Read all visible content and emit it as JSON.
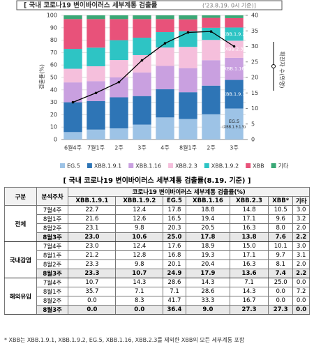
{
  "chart_data": {
    "type": "bar",
    "stacked": true,
    "title": "[ 국내 코로나19 변이바이러스 세부계통 검출률",
    "subtitle": "('23.8.19. 0시 기준)]",
    "ylabel": "검출률(%)",
    "categories": [
      "6월4주",
      "7월1주",
      "2주",
      "3주",
      "4주",
      "8월1주",
      "2주",
      "3주"
    ],
    "series": [
      {
        "name": "EG.5",
        "color": "#9dc3e6",
        "values": [
          6,
          8,
          9,
          12,
          17.8,
          16.5,
          20.3,
          25.0
        ]
      },
      {
        "name": "XBB.1.9.1",
        "color": "#2e75b6",
        "values": [
          24,
          23,
          25,
          23,
          22.7,
          21.6,
          23.1,
          23.0
        ]
      },
      {
        "name": "XBB.1.16",
        "color": "#c9a0e0",
        "values": [
          16,
          16,
          16,
          19,
          18.8,
          19.4,
          20.5,
          17.8
        ]
      },
      {
        "name": "XBB.2.3",
        "color": "#f5bfdc",
        "values": [
          11,
          12,
          14,
          14,
          14.8,
          17.1,
          16.3,
          13.8
        ]
      },
      {
        "name": "XBB.1.9.2",
        "color": "#2ec4c4",
        "values": [
          16,
          15,
          16,
          14,
          12.4,
          12.6,
          9.8,
          10.6
        ]
      },
      {
        "name": "XBB",
        "color": "#e8527a",
        "values": [
          24,
          23,
          17,
          15,
          10.5,
          9.6,
          8.0,
          7.6
        ]
      },
      {
        "name": "기타",
        "color": "#3aa876",
        "values": [
          3,
          3,
          3,
          3,
          3.0,
          3.2,
          2.0,
          2.2
        ]
      },
      {
        "name": "확진자 수(만명)",
        "type": "line",
        "axis": "y2",
        "color": "#000000",
        "values": [
          12,
          15,
          18.5,
          25.5,
          31,
          34.5,
          34.8,
          30
        ]
      }
    ],
    "annotations": [
      "EG.5",
      "(XBB.1.9.1.5)",
      "XBB.1.9.1",
      "XBB.1.16",
      "XBB.2.3",
      "XBB.1.9.2"
    ],
    "ylim": [
      0,
      100
    ],
    "yticks": [
      0,
      10,
      20,
      30,
      40,
      50,
      60,
      70,
      80,
      90,
      100
    ],
    "y2lim": [
      0,
      40
    ],
    "y2ticks": [
      0,
      5,
      10,
      15,
      20,
      25,
      30,
      35,
      40
    ],
    "grid": true,
    "legend": "bottom"
  },
  "table": {
    "title": "[ 국내 코로나19 변이바이러스 세부계통 검출률(8.19. 기준) ]",
    "header": [
      "구분",
      "분석주차",
      "코로나19 변이바이러스 세부계통 검출률(%)"
    ],
    "columns": [
      "XBB.1.9.1",
      "XBB.1.9.2",
      "EG.5",
      "XBB.1.16",
      "XBB.2.3",
      "XBB*",
      "기타"
    ],
    "groups": [
      {
        "name": "전체",
        "rows": [
          {
            "week": "7월4주",
            "values": [
              "22.7",
              "12.4",
              "17.8",
              "18.8",
              "14.8",
              "10.5",
              "3.0"
            ]
          },
          {
            "week": "8월1주",
            "values": [
              "21.6",
              "12.6",
              "16.5",
              "19.4",
              "17.1",
              "9.6",
              "3.2"
            ]
          },
          {
            "week": "8월2주",
            "values": [
              "23.1",
              "9.8",
              "20.3",
              "20.5",
              "16.3",
              "8.0",
              "2.0"
            ]
          },
          {
            "week": "8월3주",
            "values": [
              "23.0",
              "10.6",
              "25.0",
              "17.8",
              "13.8",
              "7.6",
              "2.2"
            ]
          }
        ]
      },
      {
        "name": "국내감염",
        "rows": [
          {
            "week": "7월4주",
            "values": [
              "23.0",
              "12.4",
              "17.6",
              "18.9",
              "15.0",
              "10.1",
              "3.0"
            ]
          },
          {
            "week": "8월1주",
            "values": [
              "21.2",
              "12.8",
              "16.8",
              "19.3",
              "17.1",
              "9.7",
              "3.1"
            ]
          },
          {
            "week": "8월2주",
            "values": [
              "23.3",
              "9.8",
              "20.1",
              "20.4",
              "16.3",
              "8.1",
              "2.0"
            ]
          },
          {
            "week": "8월3주",
            "values": [
              "23.3",
              "10.7",
              "24.9",
              "17.9",
              "13.6",
              "7.4",
              "2.2"
            ]
          }
        ]
      },
      {
        "name": "해외유입",
        "rows": [
          {
            "week": "7월4주",
            "values": [
              "10.7",
              "14.3",
              "28.6",
              "14.3",
              "7.1",
              "25.0",
              "0.0"
            ]
          },
          {
            "week": "8월1주",
            "values": [
              "35.7",
              "7.1",
              "7.1",
              "28.6",
              "14.3",
              "0.0",
              "7.2"
            ]
          },
          {
            "week": "8월2주",
            "values": [
              "0.0",
              "8.3",
              "41.7",
              "33.3",
              "16.7",
              "0.0",
              "0.0"
            ]
          },
          {
            "week": "8월3주",
            "values": [
              "0.0",
              "0.0",
              "36.4",
              "9.0",
              "27.3",
              "27.3",
              "0.0"
            ]
          }
        ]
      }
    ]
  },
  "footnote": "* XBB는 XBB.1.9.1, XBB.1.9.2, EG.5, XBB.1.16, XBB.2.3를 제외한 XBB의 모든 세부계통 포함"
}
